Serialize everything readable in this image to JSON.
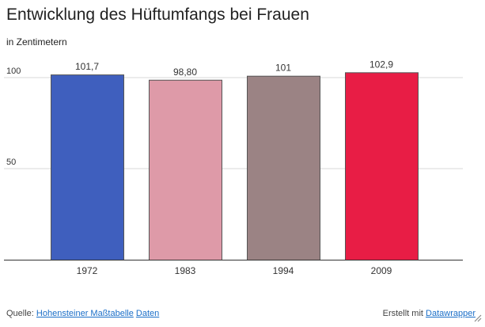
{
  "title": "Entwicklung des Hüftumfangs bei Frauen",
  "subtitle": "in Zentimetern",
  "chart_data": {
    "type": "bar",
    "categories": [
      "1972",
      "1983",
      "1994",
      "2009"
    ],
    "values": [
      101.7,
      98.8,
      101,
      102.9
    ],
    "value_labels": [
      "101,7",
      "98,80",
      "101",
      "102,9"
    ],
    "colors": [
      "#3f5fbe",
      "#de9aa8",
      "#9b8384",
      "#e81d45"
    ],
    "ylim": [
      0,
      105
    ],
    "yticks": [
      50,
      100
    ],
    "ytick_labels": [
      "50",
      "100"
    ],
    "grid": true
  },
  "footer": {
    "source_prefix": "Quelle:",
    "source_link": "Hohensteiner Maßtabelle",
    "data_link": "Daten",
    "credit_prefix": "Erstellt mit",
    "credit_link": "Datawrapper"
  },
  "icons": {
    "resize": "resize-icon"
  }
}
